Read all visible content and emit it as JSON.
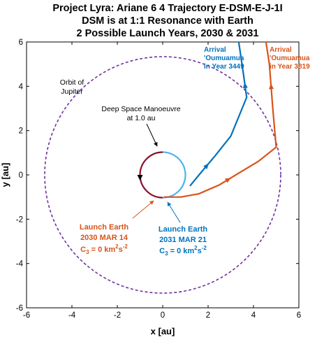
{
  "chart_data": {
    "type": "line",
    "title_lines": [
      "Project Lyra: Ariane 6 4 Trajectory E-DSM-E-J-1I",
      "DSM is at 1:1 Resonance with Earth",
      "2 Possible Launch Years, 2030 & 2031"
    ],
    "xlabel": "x [au]",
    "ylabel": "y [au]",
    "xlim": [
      -6,
      6
    ],
    "ylim": [
      -6,
      6
    ],
    "xticks": [
      "-6",
      "-4",
      "-2",
      "0",
      "2",
      "4",
      "6"
    ],
    "yticks": [
      "-6",
      "-4",
      "-2",
      "0",
      "2",
      "4",
      "6"
    ],
    "grid": false,
    "jupiter_orbit": {
      "label_line1": "Orbit of",
      "label_line2": "Jupiter",
      "radius": 5.2,
      "color": "#7030a0"
    },
    "dsm_annotation": {
      "line1": "Deep Space Manoeuvre",
      "line2": "at 1.0 au",
      "point": [
        0.0,
        1.0
      ],
      "color": "#000000"
    },
    "series": [
      {
        "id": "traj2030",
        "color": "#d95319",
        "launch_label_line1": "Launch Earth",
        "launch_label_line2": "2030 MAR 14",
        "c3_prefix": "C",
        "c3_sub": "3",
        "c3_mid": " = 0 km",
        "c3_sup1": "2",
        "c3_mid2": "s",
        "c3_sup2": "-2",
        "arrival_line1": "Arrival",
        "arrival_line2": "'Oumuamua",
        "arrival_line3": "in Year 3819",
        "points": [
          [
            0.05,
            -1.0
          ],
          [
            0.8,
            -1.0
          ],
          [
            1.6,
            -0.85
          ],
          [
            2.5,
            -0.45
          ],
          [
            3.3,
            0.05
          ],
          [
            4.2,
            0.6
          ],
          [
            5.0,
            1.25
          ],
          [
            4.85,
            3.0
          ],
          [
            4.7,
            5.0
          ],
          [
            4.55,
            6.0
          ]
        ]
      },
      {
        "id": "traj2031",
        "color": "#0072bd",
        "launch_label_line1": "Launch Earth",
        "launch_label_line2": "2031 MAR 21",
        "c3_prefix": "C",
        "c3_sub": "3",
        "c3_mid": " = 0 km",
        "c3_sup1": "2",
        "c3_mid2": "s",
        "c3_sup2": "-2",
        "arrival_line1": "Arrival",
        "arrival_line2": "'Oumuamua",
        "arrival_line3": "in Year 3449",
        "points": [
          [
            1.2,
            -0.5
          ],
          [
            1.6,
            0.0
          ],
          [
            2.3,
            0.85
          ],
          [
            3.0,
            1.75
          ],
          [
            3.7,
            3.5
          ],
          [
            3.55,
            4.6
          ],
          [
            3.35,
            6.0
          ]
        ]
      }
    ],
    "dsm_loop_colors": {
      "left": "#8b0f2e",
      "right": "#4fb3e8"
    }
  }
}
